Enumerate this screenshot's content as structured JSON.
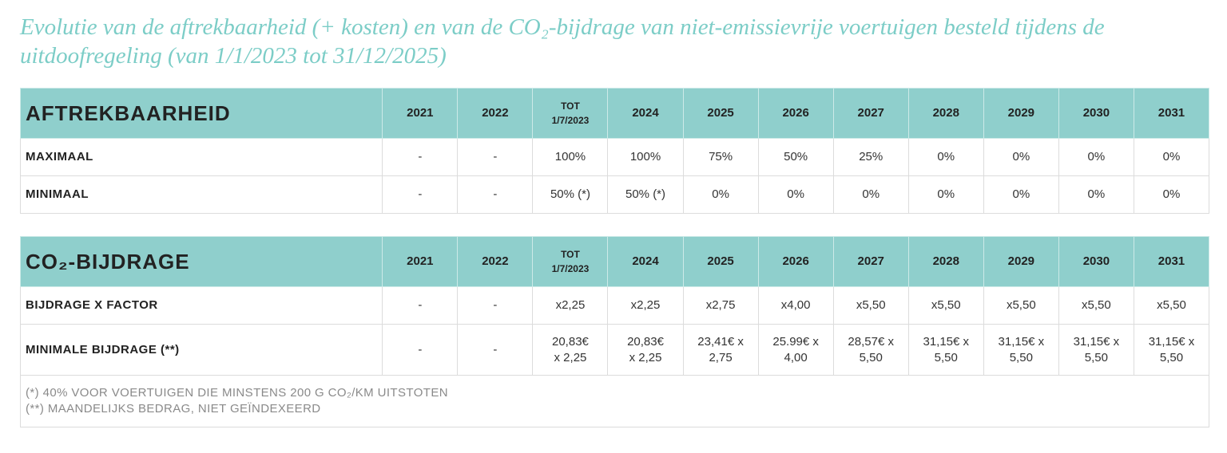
{
  "title": "Evolutie van de aftrekbaarheid (+ kosten) en van de CO₂-bijdrage van niet-emissievrije voertuigen besteld tijdens de uitdoofregeling (van 1/1/2023 tot 31/12/2025)",
  "tables": [
    {
      "header": [
        "AFTREKBAARHEID",
        "2021",
        "2022",
        "TOT\n1/7/2023",
        "2024",
        "2025",
        "2026",
        "2027",
        "2028",
        "2029",
        "2030",
        "2031"
      ],
      "rows": [
        [
          "MAXIMAAL",
          "-",
          "-",
          "100%",
          "100%",
          "75%",
          "50%",
          "25%",
          "0%",
          "0%",
          "0%",
          "0%"
        ],
        [
          "MINIMAAL",
          "-",
          "-",
          "50% (*)",
          "50% (*)",
          "0%",
          "0%",
          "0%",
          "0%",
          "0%",
          "0%",
          "0%"
        ]
      ]
    },
    {
      "header": [
        "CO₂-BIJDRAGE",
        "2021",
        "2022",
        "TOT\n1/7/2023",
        "2024",
        "2025",
        "2026",
        "2027",
        "2028",
        "2029",
        "2030",
        "2031"
      ],
      "rows": [
        [
          "BIJDRAGE X FACTOR",
          "-",
          "-",
          "x2,25",
          "x2,25",
          "x2,75",
          "x4,00",
          "x5,50",
          "x5,50",
          "x5,50",
          "x5,50",
          "x5,50"
        ],
        [
          "MINIMALE BIJDRAGE (**)",
          "-",
          "-",
          "20,83€\nx 2,25",
          "20,83€\nx 2,25",
          "23,41€ x\n2,75",
          "25.99€ x\n4,00",
          "28,57€ x\n5,50",
          "31,15€ x\n5,50",
          "31,15€ x\n5,50",
          "31,15€ x\n5,50",
          "31,15€ x\n5,50"
        ]
      ]
    }
  ],
  "footnotes": [
    "(*) 40% VOOR VOERTUIGEN DIE MINSTENS 200 G CO₂/KM UITSTOTEN",
    "(**) MAANDELIJKS BEDRAG, NIET GEÏNDEXEERD"
  ]
}
